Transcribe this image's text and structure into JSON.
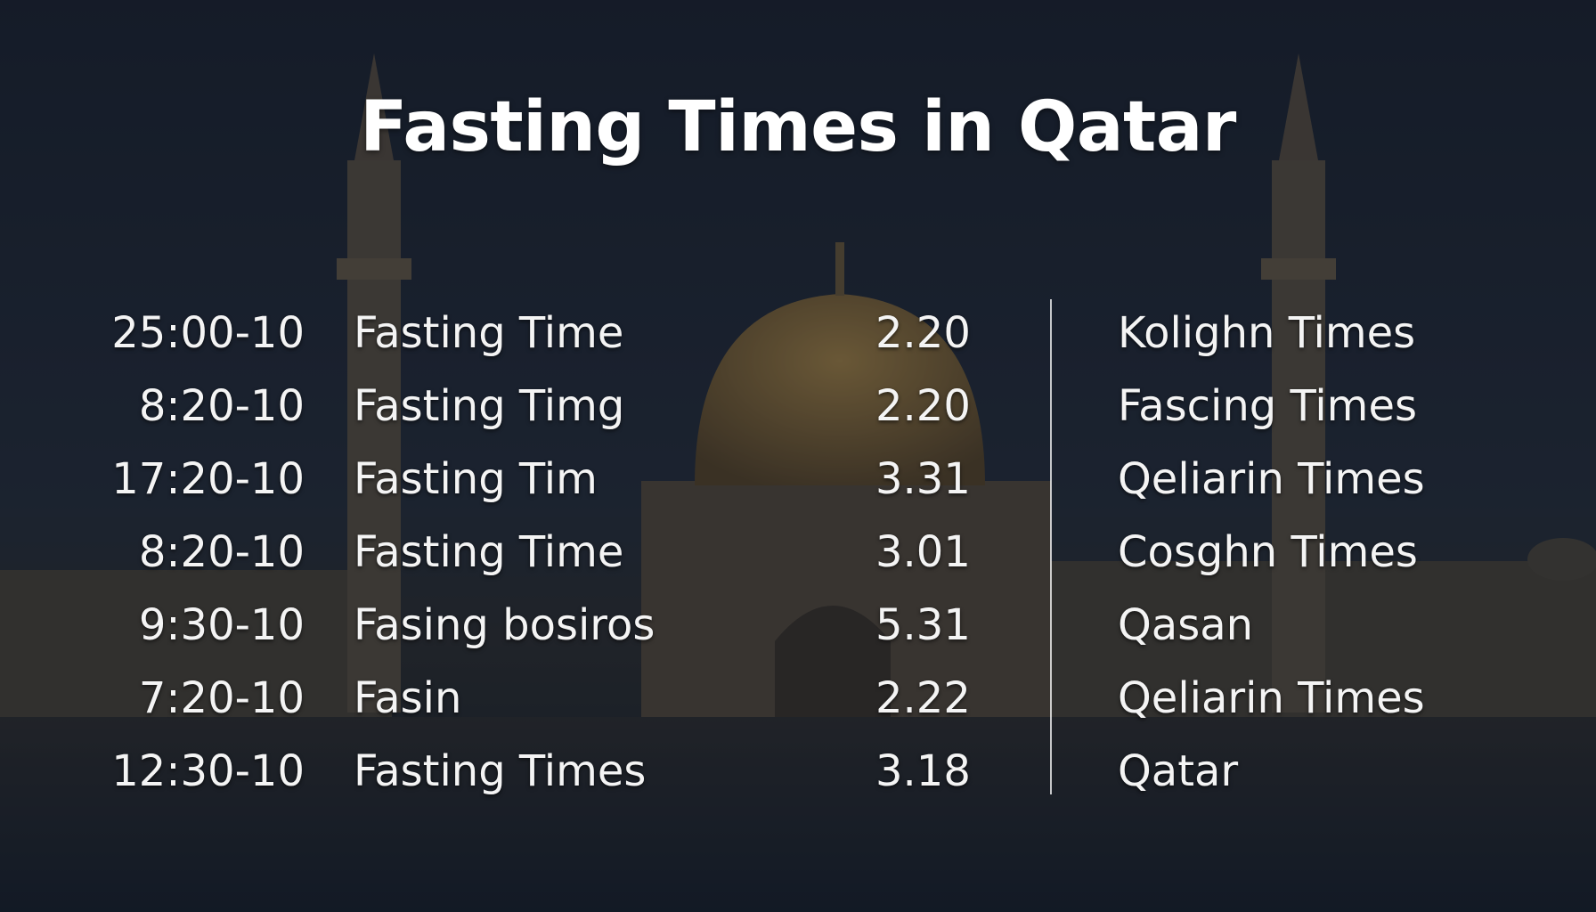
{
  "title": "Fasting Times in Qatar",
  "rows": [
    {
      "time": "25:00-10",
      "label": "Fasting Time",
      "value": "2.20",
      "right": "Kolighn Times"
    },
    {
      "time": "8:20-10",
      "label": "Fasting Timg",
      "value": "2.20",
      "right": "Fascing Times"
    },
    {
      "time": "17:20-10",
      "label": "Fasting Tim",
      "value": "3.31",
      "right": "Qeliarin Times"
    },
    {
      "time": "8:20-10",
      "label": "Fasting Time",
      "value": "3.01",
      "right": "Cosghn Times"
    },
    {
      "time": "9:30-10",
      "label": "Fasing bosiros",
      "value": "5.31",
      "right": "Qasan"
    },
    {
      "time": "7:20-10",
      "label": "Fasin",
      "value": "2.22",
      "right": "Qeliarin Times"
    },
    {
      "time": "12:30-10",
      "label": "Fasting Times",
      "value": "3.18",
      "right": "Qatar"
    }
  ]
}
